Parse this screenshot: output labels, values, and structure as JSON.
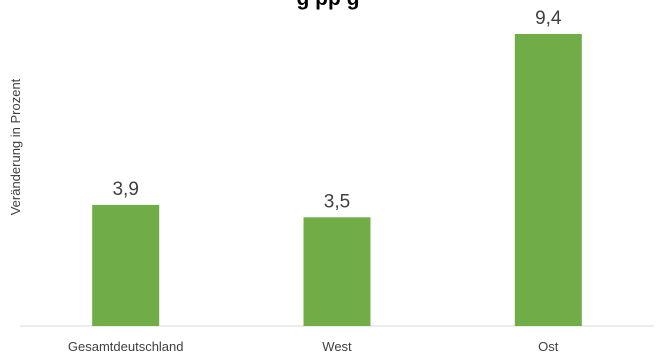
{
  "chart_data": {
    "type": "bar",
    "title": "",
    "title_visible_fragment": "g  pp                          g",
    "ylabel": "Veränderung in Prozent",
    "xlabel": "",
    "categories": [
      "Gesamtdeutschland",
      "West",
      "Ost"
    ],
    "values": [
      3.9,
      3.5,
      9.4
    ],
    "value_labels": [
      "3,9",
      "3,5",
      "9,4"
    ],
    "ylim": [
      0,
      10
    ],
    "grid": false,
    "legend": "none",
    "bar_color": "#70ad47",
    "axis_color": "#d9d9d9",
    "text_color": "#404040"
  }
}
